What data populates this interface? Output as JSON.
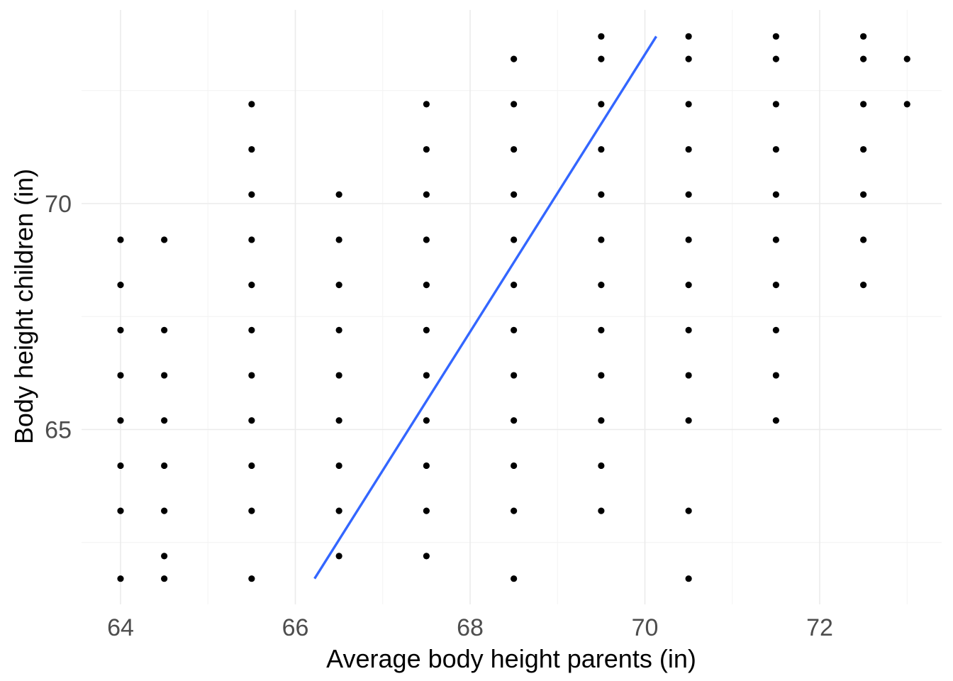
{
  "chart_data": {
    "type": "scatter",
    "title": "",
    "xlabel": "Average body height parents (in)",
    "ylabel": "Body height children (in)",
    "xlim": [
      63.8,
      73.3
    ],
    "ylim": [
      61.5,
      74.3
    ],
    "x_ticks": [
      64,
      66,
      68,
      70,
      72
    ],
    "y_ticks": [
      65,
      70
    ],
    "x_minor_ticks": [
      65,
      67,
      69,
      71,
      73
    ],
    "y_minor_ticks": [
      62.5,
      67.5,
      72.5
    ],
    "grid": true,
    "legend": "none",
    "colors": {
      "points": "#000000",
      "trend": "#3366ff",
      "grid": "#ebebeb",
      "tick_text": "#4d4d4d"
    },
    "points": [
      [
        64,
        69.2
      ],
      [
        64,
        68.2
      ],
      [
        64,
        67.2
      ],
      [
        64,
        66.2
      ],
      [
        64,
        65.2
      ],
      [
        64,
        64.2
      ],
      [
        64,
        63.2
      ],
      [
        64,
        61.7
      ],
      [
        64.5,
        69.2
      ],
      [
        64.5,
        67.2
      ],
      [
        64.5,
        66.2
      ],
      [
        64.5,
        65.2
      ],
      [
        64.5,
        64.2
      ],
      [
        64.5,
        63.2
      ],
      [
        64.5,
        62.2
      ],
      [
        64.5,
        61.7
      ],
      [
        65.5,
        72.2
      ],
      [
        65.5,
        71.2
      ],
      [
        65.5,
        70.2
      ],
      [
        65.5,
        69.2
      ],
      [
        65.5,
        68.2
      ],
      [
        65.5,
        67.2
      ],
      [
        65.5,
        66.2
      ],
      [
        65.5,
        65.2
      ],
      [
        65.5,
        64.2
      ],
      [
        65.5,
        63.2
      ],
      [
        65.5,
        61.7
      ],
      [
        66.5,
        70.2
      ],
      [
        66.5,
        69.2
      ],
      [
        66.5,
        68.2
      ],
      [
        66.5,
        67.2
      ],
      [
        66.5,
        66.2
      ],
      [
        66.5,
        65.2
      ],
      [
        66.5,
        64.2
      ],
      [
        66.5,
        63.2
      ],
      [
        66.5,
        62.2
      ],
      [
        67.5,
        72.2
      ],
      [
        67.5,
        71.2
      ],
      [
        67.5,
        70.2
      ],
      [
        67.5,
        69.2
      ],
      [
        67.5,
        68.2
      ],
      [
        67.5,
        67.2
      ],
      [
        67.5,
        66.2
      ],
      [
        67.5,
        65.2
      ],
      [
        67.5,
        64.2
      ],
      [
        67.5,
        63.2
      ],
      [
        67.5,
        62.2
      ],
      [
        68.5,
        73.2
      ],
      [
        68.5,
        72.2
      ],
      [
        68.5,
        71.2
      ],
      [
        68.5,
        70.2
      ],
      [
        68.5,
        69.2
      ],
      [
        68.5,
        68.2
      ],
      [
        68.5,
        67.2
      ],
      [
        68.5,
        66.2
      ],
      [
        68.5,
        65.2
      ],
      [
        68.5,
        64.2
      ],
      [
        68.5,
        63.2
      ],
      [
        68.5,
        61.7
      ],
      [
        69.5,
        73.7
      ],
      [
        69.5,
        73.2
      ],
      [
        69.5,
        72.2
      ],
      [
        69.5,
        71.2
      ],
      [
        69.5,
        70.2
      ],
      [
        69.5,
        69.2
      ],
      [
        69.5,
        68.2
      ],
      [
        69.5,
        67.2
      ],
      [
        69.5,
        66.2
      ],
      [
        69.5,
        65.2
      ],
      [
        69.5,
        64.2
      ],
      [
        69.5,
        63.2
      ],
      [
        70.5,
        73.7
      ],
      [
        70.5,
        73.2
      ],
      [
        70.5,
        72.2
      ],
      [
        70.5,
        71.2
      ],
      [
        70.5,
        70.2
      ],
      [
        70.5,
        69.2
      ],
      [
        70.5,
        68.2
      ],
      [
        70.5,
        67.2
      ],
      [
        70.5,
        66.2
      ],
      [
        70.5,
        65.2
      ],
      [
        70.5,
        63.2
      ],
      [
        70.5,
        61.7
      ],
      [
        71.5,
        73.7
      ],
      [
        71.5,
        73.2
      ],
      [
        71.5,
        72.2
      ],
      [
        71.5,
        71.2
      ],
      [
        71.5,
        70.2
      ],
      [
        71.5,
        69.2
      ],
      [
        71.5,
        68.2
      ],
      [
        71.5,
        67.2
      ],
      [
        71.5,
        66.2
      ],
      [
        71.5,
        65.2
      ],
      [
        72.5,
        73.7
      ],
      [
        72.5,
        73.2
      ],
      [
        72.5,
        72.2
      ],
      [
        72.5,
        71.2
      ],
      [
        72.5,
        70.2
      ],
      [
        72.5,
        69.2
      ],
      [
        72.5,
        68.2
      ],
      [
        73,
        73.2
      ],
      [
        73,
        72.2
      ]
    ],
    "trend_line": {
      "x": [
        66.22,
        70.13
      ],
      "y": [
        61.7,
        73.7
      ]
    }
  }
}
